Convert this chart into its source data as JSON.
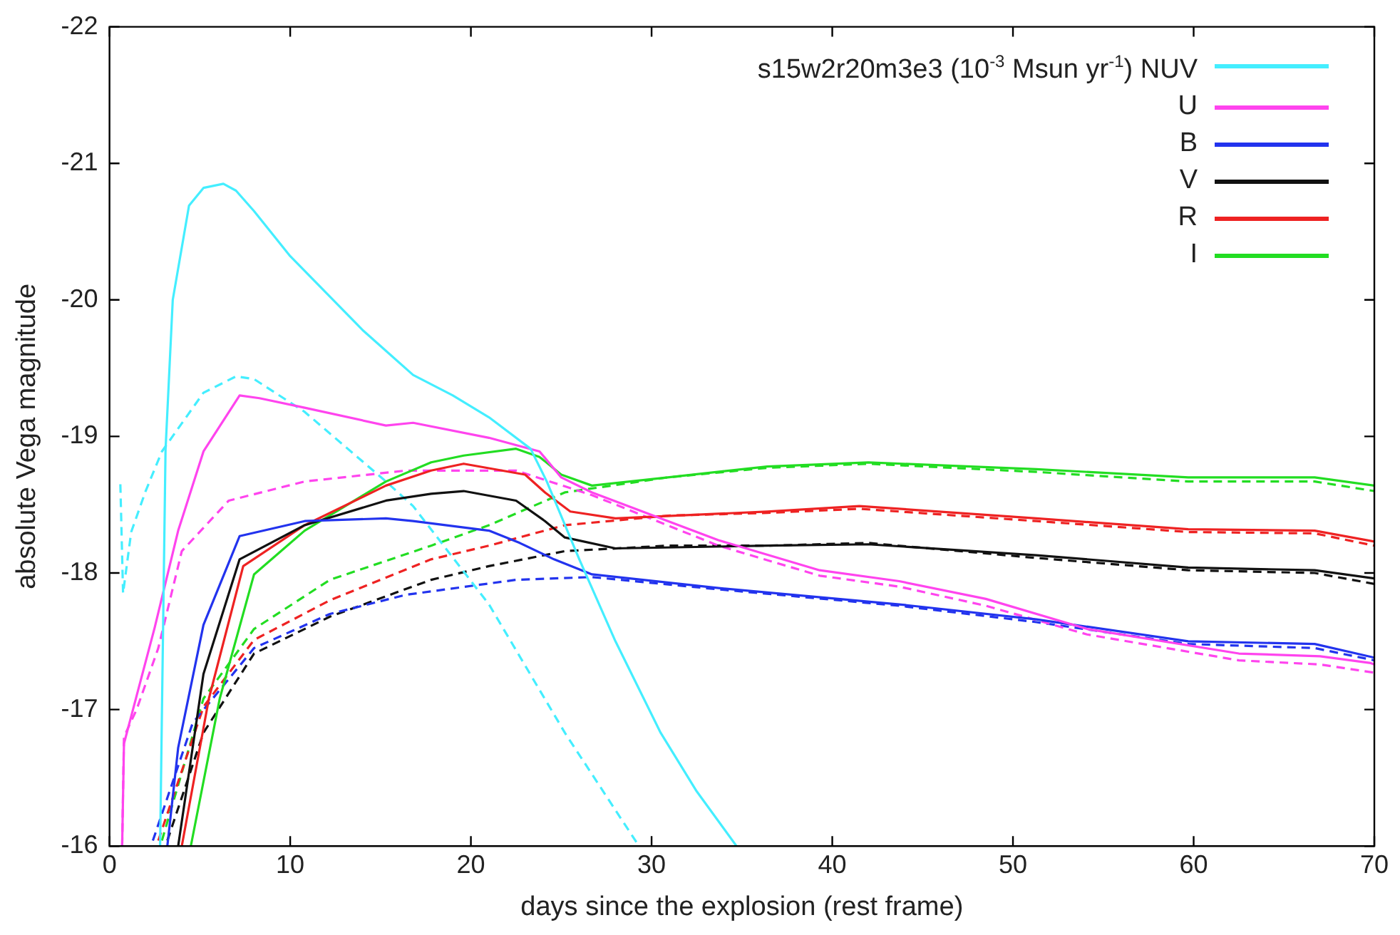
{
  "chart_data": {
    "type": "line",
    "xlabel": "days since the explosion (rest frame)",
    "ylabel": "absolute Vega magnitude",
    "legend_title": "s15w2r20m3e3 (10$^{-3}$ Msun yr$^{-1}$)",
    "legend": "top right",
    "grid": false,
    "marker": "none",
    "xlim": [
      0,
      70
    ],
    "xticks": [
      0,
      10,
      20,
      30,
      40,
      50,
      60,
      70
    ],
    "ylim": [
      -16,
      -22
    ],
    "yticks": [
      -16,
      -17,
      -18,
      -19,
      -20,
      -21,
      -22
    ],
    "series": [
      {
        "name": "NUV",
        "color": "#44eeff",
        "line_style": "solid",
        "x": [
          2.8,
          3.1,
          3.5,
          4.4,
          5.2,
          6.3,
          7,
          8,
          10,
          12,
          14,
          16.8,
          19,
          21,
          23.3,
          24.2,
          26,
          28,
          30.5,
          32.5,
          34.7
        ],
        "values": [
          -16,
          -18.9,
          -20,
          -20.69,
          -20.82,
          -20.85,
          -20.8,
          -20.65,
          -20.32,
          -20.05,
          -19.78,
          -19.45,
          -19.3,
          -19.14,
          -18.91,
          -18.67,
          -18.1,
          -17.5,
          -16.83,
          -16.4,
          -16
        ]
      },
      {
        "name": "U",
        "color": "#ff44ee",
        "line_style": "solid",
        "x": [
          0.7,
          0.8,
          1.5,
          2.5,
          3.8,
          5.2,
          7.2,
          8.3,
          10.8,
          15.3,
          16.8,
          21,
          23.8,
          25,
          26.7,
          33.7,
          39.3,
          43.7,
          48.5,
          54.1,
          62.5,
          67,
          69.8,
          70
        ],
        "values": [
          -16,
          -16.75,
          -17.1,
          -17.6,
          -18.31,
          -18.89,
          -19.3,
          -19.28,
          -19.21,
          -19.08,
          -19.1,
          -18.99,
          -18.89,
          -18.7,
          -18.59,
          -18.24,
          -18.02,
          -17.94,
          -17.81,
          -17.59,
          -17.41,
          -17.39,
          -17.34,
          -17.33
        ]
      },
      {
        "name": "B",
        "color": "#2233ee",
        "line_style": "solid",
        "x": [
          3.2,
          3.8,
          5.2,
          7.2,
          10.8,
          15.3,
          16.8,
          21,
          22.7,
          24.6,
          26.7,
          33.7,
          43.7,
          51.3,
          59.7,
          66.7,
          70
        ],
        "values": [
          -16,
          -16.72,
          -17.62,
          -18.27,
          -18.38,
          -18.4,
          -18.38,
          -18.31,
          -18.22,
          -18.1,
          -17.99,
          -17.89,
          -17.77,
          -17.66,
          -17.5,
          -17.48,
          -17.38
        ]
      },
      {
        "name": "V",
        "color": "#111111",
        "line_style": "solid",
        "x": [
          3.8,
          5.2,
          7.2,
          10.8,
          15.3,
          17.8,
          19.6,
          22.5,
          24.1,
          25.2,
          28,
          36.4,
          42,
          51.3,
          59.7,
          66.7,
          70
        ],
        "values": [
          -16,
          -17.26,
          -18.1,
          -18.35,
          -18.53,
          -18.58,
          -18.6,
          -18.53,
          -18.38,
          -18.26,
          -18.18,
          -18.2,
          -18.21,
          -18.13,
          -18.04,
          -18.02,
          -17.96
        ]
      },
      {
        "name": "R",
        "color": "#ee2222",
        "line_style": "solid",
        "x": [
          4,
          5.5,
          7.4,
          10.8,
          15.3,
          17.8,
          19.6,
          23,
          24.1,
          25.5,
          28,
          36.4,
          41.5,
          51.3,
          59.7,
          66.7,
          70
        ],
        "values": [
          -16,
          -17.08,
          -18.05,
          -18.35,
          -18.64,
          -18.75,
          -18.8,
          -18.72,
          -18.59,
          -18.45,
          -18.4,
          -18.45,
          -18.49,
          -18.4,
          -18.32,
          -18.31,
          -18.23
        ]
      },
      {
        "name": "I",
        "color": "#22dd22",
        "line_style": "solid",
        "x": [
          4.5,
          6.1,
          8,
          10.8,
          15.3,
          17.8,
          19.6,
          22.5,
          23.8,
          25,
          26.7,
          30.9,
          36.4,
          42,
          51.3,
          59.7,
          66.7,
          70
        ],
        "values": [
          -16,
          -17.08,
          -17.99,
          -18.31,
          -18.67,
          -18.81,
          -18.86,
          -18.91,
          -18.85,
          -18.72,
          -18.64,
          -18.7,
          -18.78,
          -18.81,
          -18.76,
          -18.7,
          -18.7,
          -18.64
        ]
      },
      {
        "color": "#44eeff",
        "line_style": "dashed",
        "x": [
          0.6,
          0.75,
          1.2,
          2,
          2.9,
          5.2,
          7,
          8,
          10.8,
          15.3,
          16.8,
          21,
          25.2,
          29.3
        ],
        "values": [
          -18.65,
          -17.85,
          -18.3,
          -18.6,
          -18.89,
          -19.32,
          -19.44,
          -19.42,
          -19.18,
          -18.67,
          -18.49,
          -17.77,
          -16.83,
          -16
        ]
      },
      {
        "color": "#ff44ee",
        "line_style": "dashed",
        "x": [
          0.7,
          0.8,
          1.5,
          2.7,
          4,
          6.6,
          10.8,
          16.4,
          22.5,
          26.7,
          33.7,
          39.3,
          43.7,
          48.5,
          54.1,
          62.5,
          67,
          70
        ],
        "values": [
          -16,
          -16.8,
          -17,
          -17.45,
          -18.16,
          -18.53,
          -18.67,
          -18.75,
          -18.75,
          -18.57,
          -18.2,
          -17.98,
          -17.9,
          -17.76,
          -17.55,
          -17.36,
          -17.33,
          -17.27
        ]
      },
      {
        "color": "#2233ee",
        "line_style": "dashed",
        "x": [
          2.4,
          4.6,
          8,
          12.2,
          16.4,
          22.5,
          26.7,
          33.7,
          43.7,
          51.3,
          59.7,
          66.7,
          70
        ],
        "values": [
          -16.04,
          -16.9,
          -17.45,
          -17.7,
          -17.84,
          -17.95,
          -17.97,
          -17.88,
          -17.76,
          -17.64,
          -17.48,
          -17.45,
          -17.36
        ]
      },
      {
        "color": "#111111",
        "line_style": "dashed",
        "x": [
          3.2,
          5.2,
          8,
          12.2,
          17.8,
          21,
          25.2,
          30.9,
          36.4,
          42,
          51.3,
          59.7,
          66.7,
          70
        ],
        "values": [
          -16.04,
          -16.83,
          -17.41,
          -17.68,
          -17.95,
          -18.05,
          -18.16,
          -18.2,
          -18.2,
          -18.22,
          -18.11,
          -18.02,
          -18,
          -17.92
        ]
      },
      {
        "color": "#ee2222",
        "line_style": "dashed",
        "x": [
          2.7,
          5.2,
          8,
          12.2,
          17.8,
          21,
          25.2,
          30.9,
          36.4,
          41.5,
          51.3,
          59.7,
          66.7,
          70
        ],
        "values": [
          -16.04,
          -17.02,
          -17.51,
          -17.8,
          -18.1,
          -18.2,
          -18.35,
          -18.42,
          -18.44,
          -18.47,
          -18.38,
          -18.3,
          -18.29,
          -18.2
        ]
      },
      {
        "color": "#22dd22",
        "line_style": "dashed",
        "x": [
          2.9,
          5.2,
          8,
          12.2,
          17.8,
          21,
          25.2,
          30.9,
          36.4,
          42,
          51.3,
          59.7,
          66.7,
          70
        ],
        "values": [
          -16.04,
          -17.08,
          -17.59,
          -17.95,
          -18.2,
          -18.35,
          -18.59,
          -18.7,
          -18.77,
          -18.8,
          -18.74,
          -18.67,
          -18.67,
          -18.6
        ]
      }
    ]
  }
}
